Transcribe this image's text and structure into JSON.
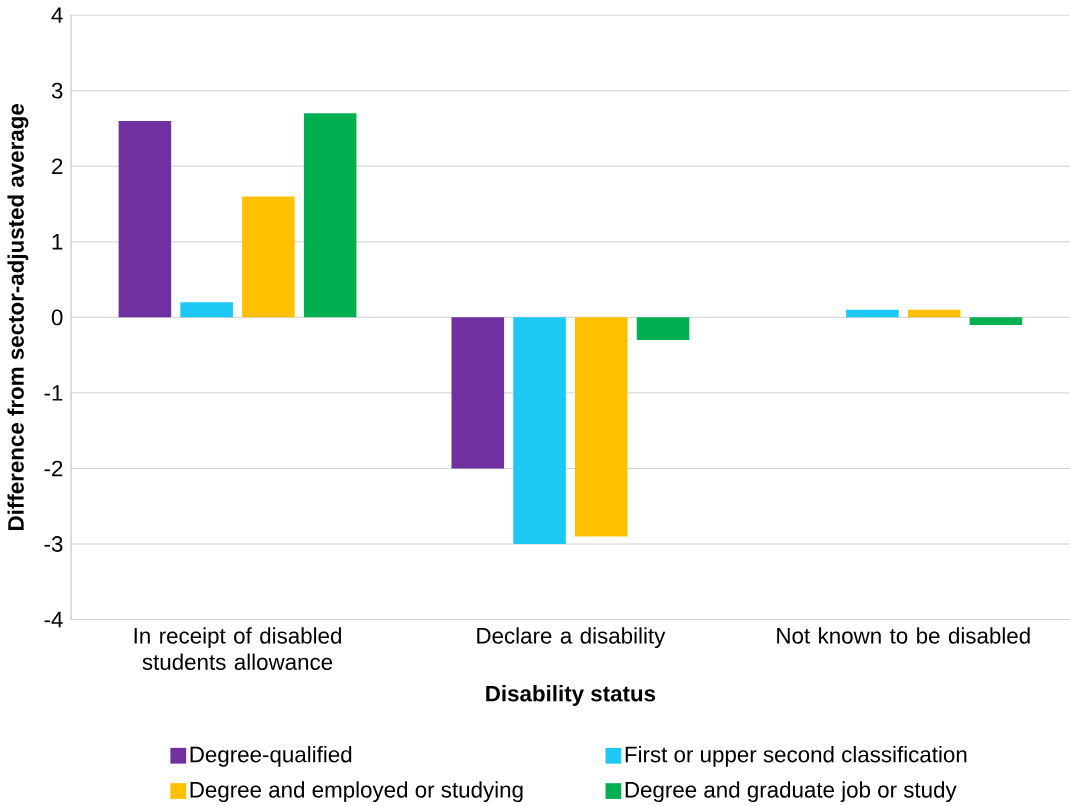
{
  "chart_data": {
    "type": "bar",
    "xlabel": "Disability status",
    "ylabel": "Difference from sector-adjusted average",
    "categories": [
      "In receipt of disabled students allowance",
      "Declare a disability",
      "Not known to be disabled"
    ],
    "series": [
      {
        "name": "Degree-qualified",
        "color": "#7030a0",
        "values": [
          2.6,
          -2.0,
          0
        ]
      },
      {
        "name": "First or upper second classification",
        "color": "#1ec8f5",
        "values": [
          0.2,
          -3.0,
          0.1
        ]
      },
      {
        "name": "Degree and employed or studying",
        "color": "#ffc000",
        "values": [
          1.6,
          -2.9,
          0.1
        ]
      },
      {
        "name": "Degree and graduate job or study",
        "color": "#00b050",
        "values": [
          2.7,
          -0.3,
          -0.1
        ]
      }
    ],
    "ylim": [
      -4,
      4
    ],
    "yticks": [
      -4,
      -3,
      -2,
      -1,
      0,
      1,
      2,
      3,
      4
    ],
    "grid": "y",
    "legend": "bottom"
  }
}
